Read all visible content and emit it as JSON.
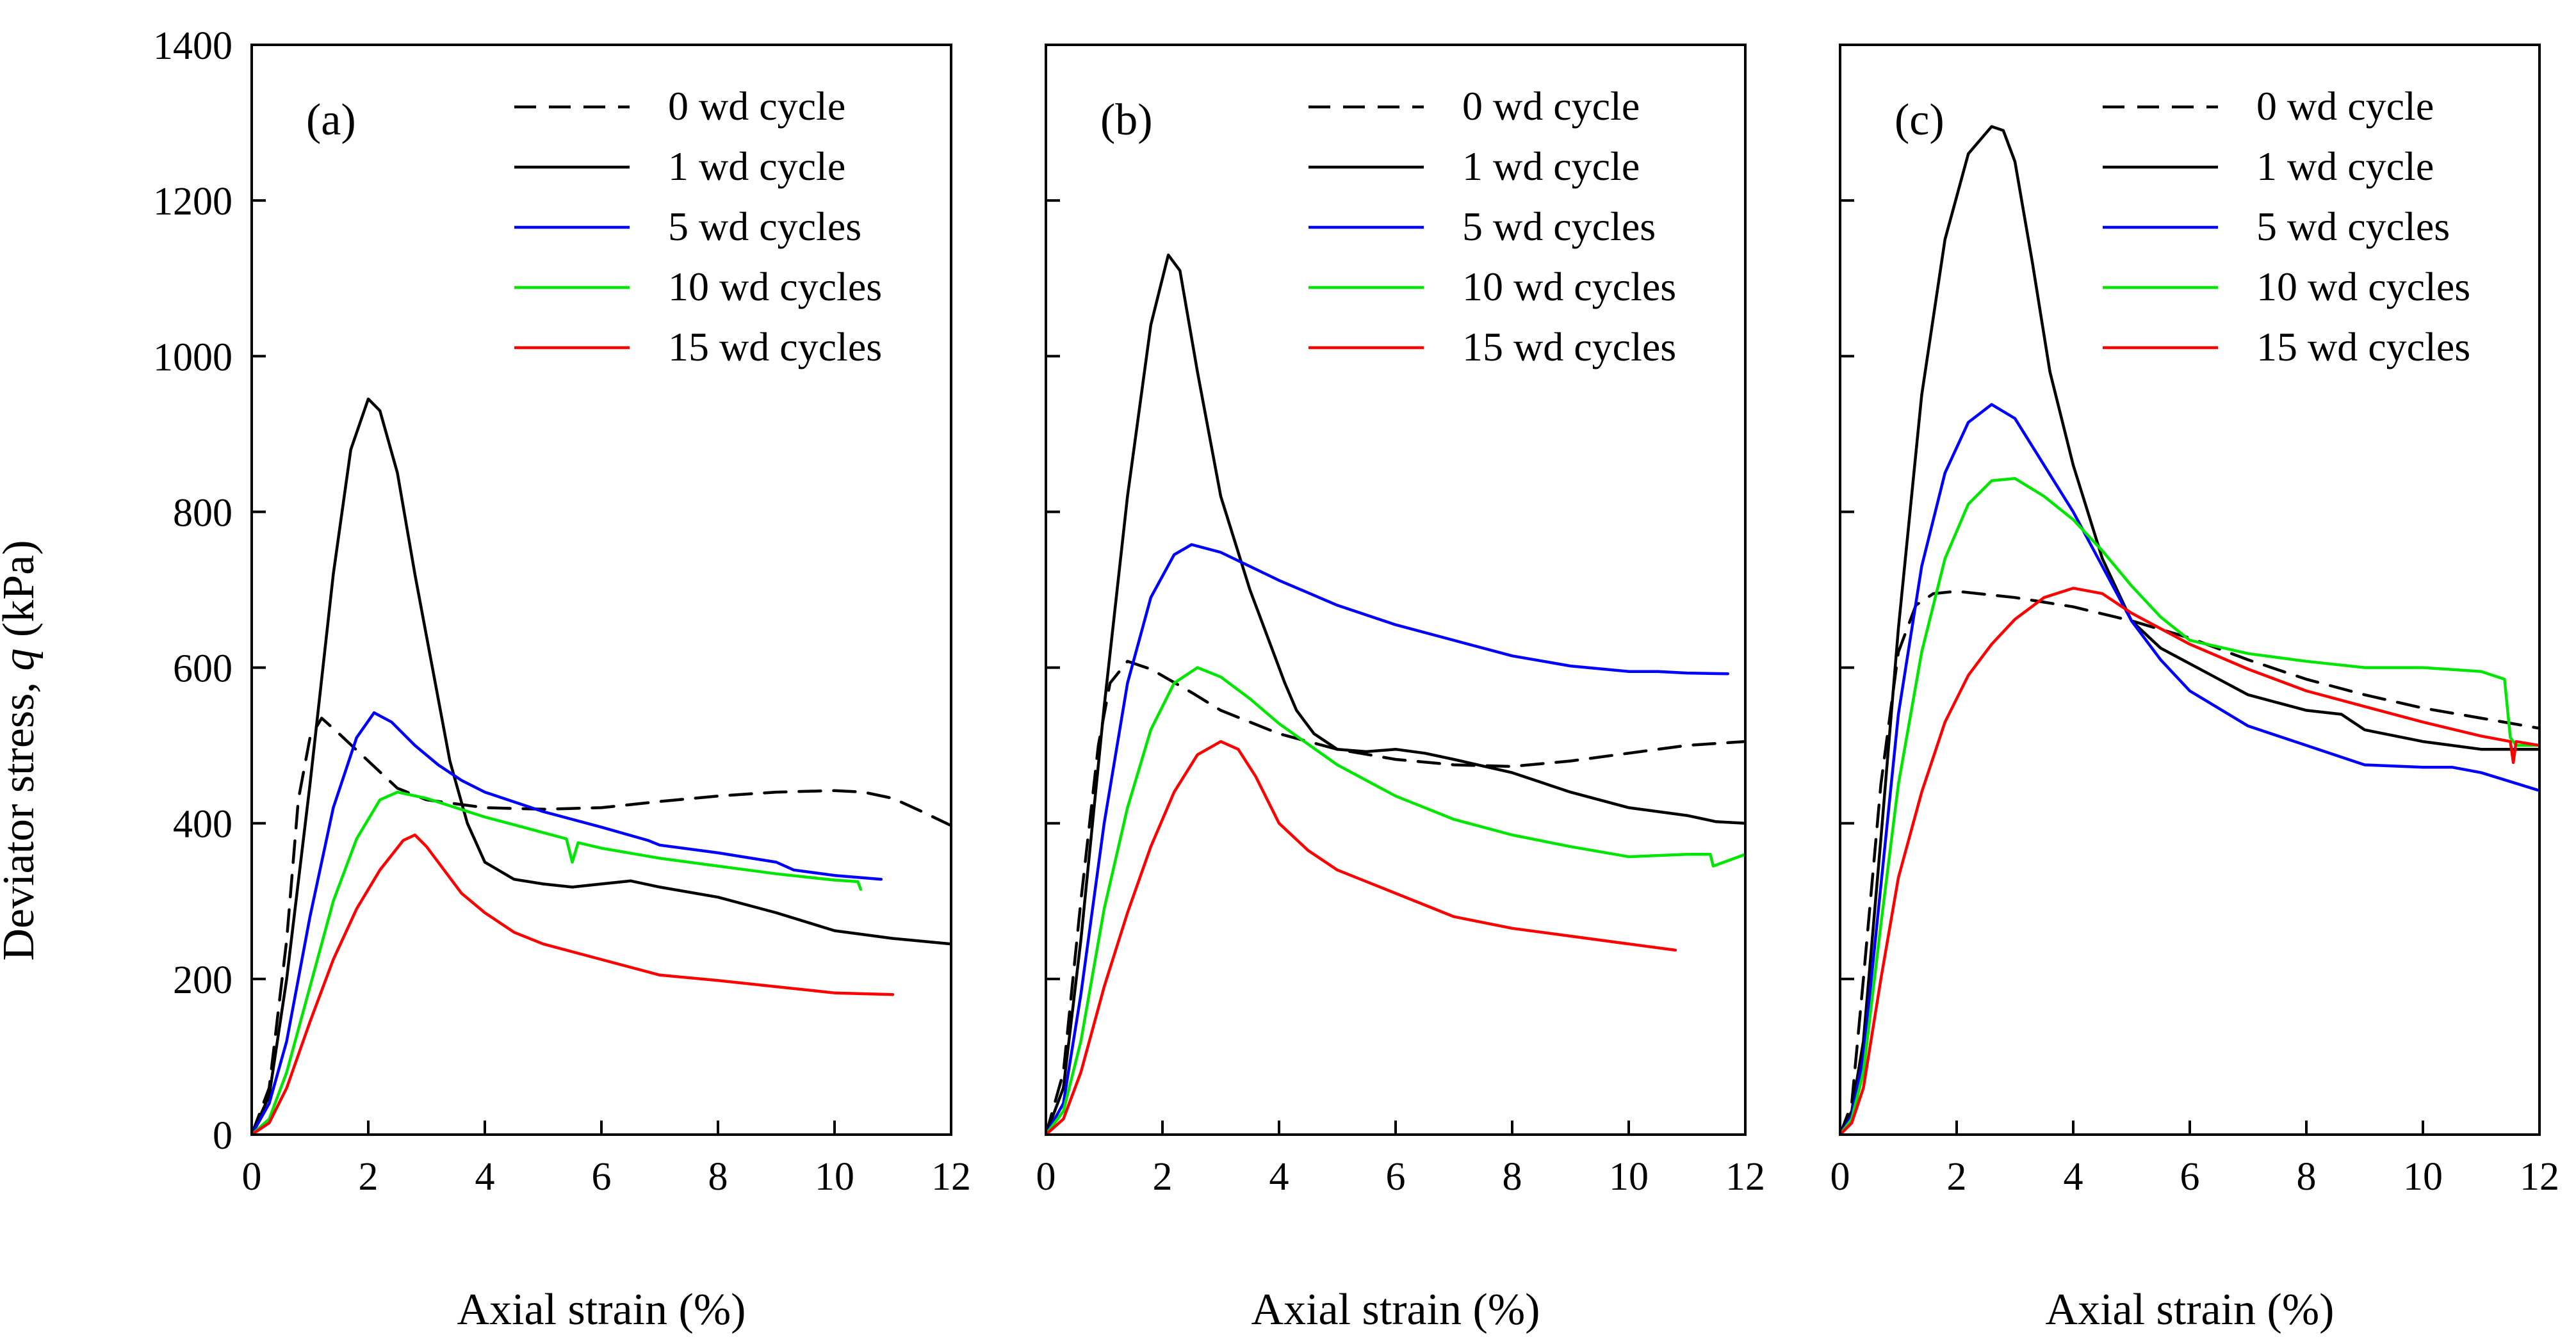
{
  "figure": {
    "ylabel_prefix": "Deviator stress, ",
    "ylabel_var": "q",
    "ylabel_unit": " (kPa)"
  },
  "styles": {
    "0 wd cycle": {
      "color": "#000000",
      "dash": "dashed"
    },
    "1 wd cycle": {
      "color": "#000000",
      "dash": "solid"
    },
    "5 wd cycles": {
      "color": "#0000ff",
      "dash": "solid"
    },
    "10 wd cycles": {
      "color": "#00e600",
      "dash": "solid"
    },
    "15 wd cycles": {
      "color": "#ff0000",
      "dash": "solid"
    }
  },
  "chart_data": [
    {
      "type": "line",
      "panel_label": "(a)",
      "xlabel": "Axial strain (%)",
      "ylabel": "Deviator stress, q (kPa)",
      "xlim": [
        0,
        12
      ],
      "ylim": [
        0,
        1400
      ],
      "xticks": [
        0,
        2,
        4,
        6,
        8,
        10,
        12
      ],
      "yticks": [
        0,
        200,
        400,
        600,
        800,
        1000,
        1200,
        1400
      ],
      "legend_position": "top-right",
      "series": [
        {
          "name": "0 wd cycle",
          "x": [
            0,
            0.3,
            0.6,
            0.8,
            1.0,
            1.2,
            1.5,
            2.0,
            2.5,
            3.0,
            4.0,
            5.0,
            6.0,
            7.0,
            8.0,
            9.0,
            10.0,
            10.5,
            11.0,
            11.5,
            12.0
          ],
          "y": [
            0,
            60,
            250,
            430,
            510,
            535,
            515,
            480,
            445,
            430,
            420,
            418,
            420,
            428,
            435,
            440,
            442,
            440,
            432,
            415,
            397
          ]
        },
        {
          "name": "1 wd cycle",
          "x": [
            0,
            0.3,
            0.6,
            1.0,
            1.4,
            1.7,
            2.0,
            2.2,
            2.5,
            2.8,
            3.1,
            3.4,
            3.7,
            4.0,
            4.5,
            5.0,
            5.5,
            6.0,
            6.5,
            7.0,
            8.0,
            9.0,
            10.0,
            11.0,
            12.0
          ],
          "y": [
            0,
            50,
            200,
            450,
            720,
            880,
            945,
            930,
            850,
            720,
            600,
            480,
            400,
            350,
            328,
            322,
            318,
            322,
            326,
            318,
            305,
            285,
            262,
            252,
            245
          ]
        },
        {
          "name": "5 wd cycles",
          "x": [
            0,
            0.3,
            0.6,
            1.0,
            1.4,
            1.8,
            2.1,
            2.4,
            2.8,
            3.2,
            3.6,
            4.0,
            5.0,
            6.0,
            6.8,
            7.0,
            8.0,
            9.0,
            9.3,
            10.0,
            10.8
          ],
          "y": [
            0,
            40,
            120,
            280,
            420,
            510,
            542,
            530,
            500,
            475,
            455,
            440,
            415,
            395,
            378,
            372,
            362,
            350,
            340,
            333,
            328
          ]
        },
        {
          "name": "10 wd cycles",
          "x": [
            0,
            0.3,
            0.6,
            1.0,
            1.4,
            1.8,
            2.2,
            2.5,
            3.0,
            3.5,
            4.0,
            4.5,
            5.0,
            5.4,
            5.5,
            5.6,
            6.0,
            7.0,
            8.0,
            9.0,
            10.0,
            10.4,
            10.45
          ],
          "y": [
            0,
            20,
            80,
            190,
            300,
            380,
            430,
            440,
            432,
            420,
            408,
            398,
            388,
            380,
            350,
            375,
            368,
            355,
            345,
            335,
            327,
            325,
            315
          ]
        },
        {
          "name": "15 wd cycles",
          "x": [
            0,
            0.3,
            0.6,
            1.0,
            1.4,
            1.8,
            2.2,
            2.6,
            2.8,
            3.0,
            3.3,
            3.6,
            4.0,
            4.5,
            5.0,
            6.0,
            7.0,
            8.0,
            9.0,
            10.0,
            11.0
          ],
          "y": [
            0,
            15,
            60,
            145,
            225,
            290,
            340,
            378,
            385,
            370,
            340,
            310,
            285,
            260,
            245,
            225,
            205,
            198,
            190,
            182,
            180
          ]
        }
      ]
    },
    {
      "type": "line",
      "panel_label": "(b)",
      "xlabel": "Axial strain (%)",
      "ylabel": "",
      "xlim": [
        0,
        12
      ],
      "ylim": [
        0,
        1400
      ],
      "xticks": [
        0,
        2,
        4,
        6,
        8,
        10,
        12
      ],
      "yticks": [
        0,
        200,
        400,
        600,
        800,
        1000,
        1200,
        1400
      ],
      "legend_position": "top-right",
      "series": [
        {
          "name": "0 wd cycle",
          "x": [
            0,
            0.3,
            0.6,
            0.9,
            1.1,
            1.4,
            1.8,
            2.5,
            3.0,
            4.0,
            5.0,
            6.0,
            7.0,
            8.0,
            9.0,
            10.0,
            11.0,
            12.0
          ],
          "y": [
            0,
            80,
            300,
            500,
            580,
            608,
            598,
            568,
            545,
            515,
            495,
            482,
            475,
            473,
            480,
            490,
            500,
            505
          ]
        },
        {
          "name": "1 wd cycle",
          "x": [
            0,
            0.3,
            0.6,
            1.0,
            1.4,
            1.8,
            2.1,
            2.3,
            2.6,
            3.0,
            3.5,
            3.8,
            4.1,
            4.3,
            4.6,
            5.0,
            5.5,
            6.0,
            6.5,
            7.0,
            8.0,
            9.0,
            10.0,
            11.0,
            11.5,
            12.0
          ],
          "y": [
            0,
            60,
            250,
            550,
            820,
            1040,
            1130,
            1110,
            980,
            820,
            700,
            640,
            580,
            545,
            515,
            495,
            492,
            495,
            490,
            482,
            465,
            440,
            420,
            410,
            402,
            400
          ]
        },
        {
          "name": "5 wd cycles",
          "x": [
            0,
            0.3,
            0.6,
            1.0,
            1.4,
            1.8,
            2.2,
            2.5,
            3.0,
            3.5,
            4.0,
            5.0,
            6.0,
            7.0,
            8.0,
            9.0,
            10.0,
            10.5,
            11.0,
            11.7
          ],
          "y": [
            0,
            40,
            180,
            400,
            580,
            690,
            745,
            758,
            748,
            730,
            712,
            680,
            655,
            635,
            615,
            602,
            595,
            595,
            593,
            592
          ]
        },
        {
          "name": "10 wd cycles",
          "x": [
            0,
            0.3,
            0.6,
            1.0,
            1.4,
            1.8,
            2.2,
            2.6,
            3.0,
            3.5,
            4.0,
            5.0,
            6.0,
            7.0,
            8.0,
            9.0,
            10.0,
            11.0,
            11.4,
            11.45,
            12.0
          ],
          "y": [
            0,
            30,
            120,
            290,
            420,
            520,
            580,
            600,
            588,
            560,
            528,
            475,
            435,
            405,
            385,
            370,
            357,
            360,
            360,
            345,
            360
          ]
        },
        {
          "name": "15 wd cycles",
          "x": [
            0,
            0.3,
            0.6,
            1.0,
            1.4,
            1.8,
            2.2,
            2.6,
            3.0,
            3.3,
            3.6,
            4.0,
            4.5,
            5.0,
            6.0,
            7.0,
            8.0,
            9.0,
            10.0,
            10.8
          ],
          "y": [
            0,
            20,
            80,
            190,
            285,
            370,
            440,
            488,
            505,
            495,
            460,
            400,
            365,
            340,
            310,
            280,
            265,
            255,
            245,
            237
          ]
        }
      ]
    },
    {
      "type": "line",
      "panel_label": "(c)",
      "xlabel": "Axial strain (%)",
      "ylabel": "",
      "xlim": [
        0,
        12
      ],
      "ylim": [
        0,
        1400
      ],
      "xticks": [
        0,
        2,
        4,
        6,
        8,
        10,
        12
      ],
      "yticks": [
        0,
        200,
        400,
        600,
        800,
        1000,
        1200,
        1400
      ],
      "legend_position": "top-right",
      "series": [
        {
          "name": "0 wd cycle",
          "x": [
            0,
            0.2,
            0.4,
            0.7,
            1.0,
            1.3,
            1.6,
            2.0,
            3.0,
            4.0,
            5.0,
            6.0,
            7.0,
            8.0,
            9.0,
            10.0,
            11.0,
            12.0
          ],
          "y": [
            0,
            40,
            200,
            450,
            620,
            680,
            695,
            698,
            690,
            678,
            660,
            638,
            610,
            585,
            565,
            548,
            535,
            522
          ]
        },
        {
          "name": "1 wd cycle",
          "x": [
            0,
            0.2,
            0.4,
            0.7,
            1.0,
            1.4,
            1.8,
            2.2,
            2.6,
            2.8,
            3.0,
            3.3,
            3.6,
            4.0,
            4.5,
            5.0,
            5.5,
            6.0,
            6.5,
            7.0,
            8.0,
            8.6,
            9.0,
            10.0,
            11.0,
            12.0
          ],
          "y": [
            0,
            30,
            120,
            380,
            650,
            950,
            1150,
            1260,
            1295,
            1290,
            1250,
            1120,
            980,
            860,
            740,
            660,
            625,
            605,
            585,
            565,
            545,
            540,
            520,
            505,
            495,
            495
          ]
        },
        {
          "name": "5 wd cycles",
          "x": [
            0,
            0.2,
            0.4,
            0.7,
            1.0,
            1.4,
            1.8,
            2.2,
            2.6,
            3.0,
            3.5,
            4.0,
            4.5,
            5.0,
            5.5,
            6.0,
            7.0,
            8.0,
            9.0,
            10.0,
            10.5,
            11.0,
            12.0
          ],
          "y": [
            0,
            25,
            100,
            320,
            540,
            730,
            850,
            915,
            938,
            920,
            860,
            800,
            730,
            660,
            610,
            570,
            525,
            500,
            475,
            472,
            472,
            465,
            442
          ]
        },
        {
          "name": "10 wd cycles",
          "x": [
            0,
            0.2,
            0.4,
            0.7,
            1.0,
            1.4,
            1.8,
            2.2,
            2.6,
            3.0,
            3.5,
            4.0,
            4.5,
            5.0,
            5.5,
            6.0,
            7.0,
            8.0,
            9.0,
            10.0,
            11.0,
            11.4,
            11.5,
            11.6,
            12.0
          ],
          "y": [
            0,
            20,
            80,
            270,
            450,
            620,
            740,
            810,
            840,
            843,
            820,
            790,
            750,
            705,
            665,
            635,
            618,
            608,
            600,
            600,
            595,
            585,
            510,
            500,
            500
          ]
        },
        {
          "name": "15 wd cycles",
          "x": [
            0,
            0.2,
            0.4,
            0.7,
            1.0,
            1.4,
            1.8,
            2.2,
            2.6,
            3.0,
            3.5,
            4.0,
            4.5,
            5.0,
            6.0,
            7.0,
            8.0,
            9.0,
            10.0,
            11.0,
            11.5,
            11.55,
            11.6,
            12.0
          ],
          "y": [
            0,
            15,
            60,
            200,
            330,
            440,
            530,
            590,
            630,
            662,
            690,
            702,
            695,
            670,
            630,
            598,
            570,
            550,
            530,
            512,
            505,
            478,
            505,
            500
          ]
        }
      ]
    }
  ]
}
